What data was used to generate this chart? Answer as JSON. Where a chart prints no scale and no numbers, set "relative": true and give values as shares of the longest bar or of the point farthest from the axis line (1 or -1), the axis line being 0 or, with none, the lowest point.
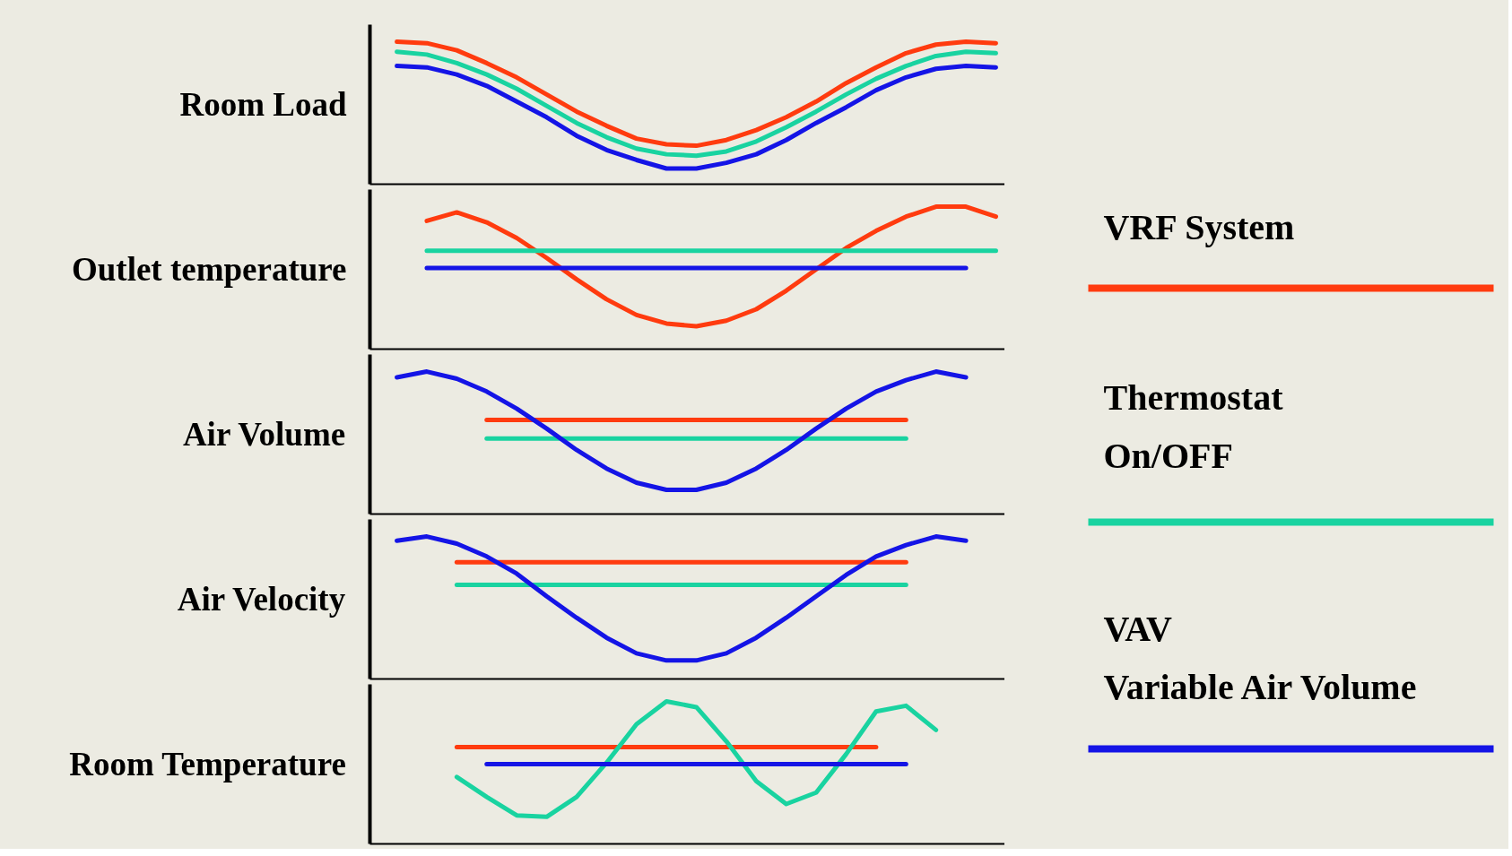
{
  "chart_data": [
    {
      "type": "line",
      "ylabel": "Room Load",
      "relative": true,
      "legend": "right",
      "grid": false,
      "categories": [
        null,
        null,
        null,
        null,
        null,
        null,
        null,
        null,
        null,
        null,
        null,
        null,
        null,
        null,
        null,
        null,
        null,
        null,
        null,
        null,
        null
      ],
      "series": [
        {
          "name": "VRF System",
          "color": "#ff3b0f",
          "values": [
            1.0,
            0.99,
            0.94,
            0.85,
            0.75,
            0.63,
            0.51,
            0.41,
            0.32,
            0.28,
            0.27,
            0.31,
            0.38,
            0.47,
            0.58,
            0.71,
            0.82,
            0.92,
            0.98,
            1.0,
            0.99
          ]
        },
        {
          "name": "Thermostat\nOn/OFF",
          "color": "#19d3a0",
          "values": [
            0.93,
            0.91,
            0.85,
            0.77,
            0.67,
            0.55,
            0.43,
            0.33,
            0.25,
            0.21,
            0.2,
            0.23,
            0.3,
            0.4,
            0.51,
            0.63,
            0.74,
            0.83,
            0.9,
            0.93,
            0.92
          ]
        },
        {
          "name": "VAV\nVariable Air Volume",
          "color": "#1414e6",
          "values": [
            0.83,
            0.82,
            0.77,
            0.69,
            0.58,
            0.47,
            0.34,
            0.24,
            0.17,
            0.11,
            0.11,
            0.15,
            0.21,
            0.31,
            0.43,
            0.54,
            0.66,
            0.75,
            0.81,
            0.83,
            0.82
          ]
        }
      ]
    },
    {
      "type": "line",
      "ylabel": "Outlet temperature",
      "relative": true,
      "grid": false,
      "categories": [
        null,
        null,
        null,
        null,
        null,
        null,
        null,
        null,
        null,
        null,
        null,
        null,
        null,
        null,
        null,
        null,
        null,
        null,
        null,
        null,
        null
      ],
      "series": [
        {
          "color": "#ff3b0f",
          "values": [
            null,
            0.9,
            0.96,
            0.89,
            0.78,
            0.64,
            0.49,
            0.35,
            0.24,
            0.18,
            0.16,
            0.2,
            0.28,
            0.41,
            0.56,
            0.71,
            0.83,
            0.93,
            1.0,
            1.0,
            0.93
          ]
        },
        {
          "color": "#19d3a0",
          "values": [
            null,
            0.69,
            0.69,
            0.69,
            0.69,
            0.69,
            0.69,
            0.69,
            0.69,
            0.69,
            0.69,
            0.69,
            0.69,
            0.69,
            0.69,
            0.69,
            0.69,
            0.69,
            0.69,
            0.69,
            0.69
          ]
        },
        {
          "color": "#1414e6",
          "values": [
            null,
            0.57,
            0.57,
            0.57,
            0.57,
            0.57,
            0.57,
            0.57,
            0.57,
            0.57,
            0.57,
            0.57,
            0.57,
            0.57,
            0.57,
            0.57,
            0.57,
            0.57,
            0.57,
            0.57,
            null
          ]
        }
      ]
    },
    {
      "type": "line",
      "ylabel": "Air Volume",
      "relative": true,
      "grid": false,
      "categories": [
        null,
        null,
        null,
        null,
        null,
        null,
        null,
        null,
        null,
        null,
        null,
        null,
        null,
        null,
        null,
        null,
        null,
        null,
        null,
        null,
        null
      ],
      "series": [
        {
          "color": "#ff3b0f",
          "values": [
            null,
            null,
            null,
            0.66,
            0.66,
            0.66,
            0.66,
            0.66,
            0.66,
            0.66,
            0.66,
            0.66,
            0.66,
            0.66,
            0.66,
            0.66,
            0.66,
            0.66,
            null,
            null,
            null
          ]
        },
        {
          "color": "#19d3a0",
          "values": [
            null,
            null,
            null,
            0.53,
            0.53,
            0.53,
            0.53,
            0.53,
            0.53,
            0.53,
            0.53,
            0.53,
            0.53,
            0.53,
            0.53,
            0.53,
            0.53,
            0.53,
            null,
            null,
            null
          ]
        },
        {
          "color": "#1414e6",
          "values": [
            0.96,
            1.0,
            0.95,
            0.86,
            0.74,
            0.6,
            0.45,
            0.32,
            0.22,
            0.17,
            0.17,
            0.22,
            0.32,
            0.45,
            0.6,
            0.74,
            0.86,
            0.94,
            1.0,
            0.96,
            null
          ]
        }
      ]
    },
    {
      "type": "line",
      "ylabel": "Air Velocity",
      "relative": true,
      "grid": false,
      "categories": [
        null,
        null,
        null,
        null,
        null,
        null,
        null,
        null,
        null,
        null,
        null,
        null,
        null,
        null,
        null,
        null,
        null,
        null,
        null,
        null,
        null
      ],
      "series": [
        {
          "color": "#ff3b0f",
          "values": [
            null,
            null,
            0.82,
            0.82,
            0.82,
            0.82,
            0.82,
            0.82,
            0.82,
            0.82,
            0.82,
            0.82,
            0.82,
            0.82,
            0.82,
            0.82,
            0.82,
            0.82,
            null,
            null,
            null
          ]
        },
        {
          "color": "#19d3a0",
          "values": [
            null,
            null,
            0.66,
            0.66,
            0.66,
            0.66,
            0.66,
            0.66,
            0.66,
            0.66,
            0.66,
            0.66,
            0.66,
            0.66,
            0.66,
            0.66,
            0.66,
            0.66,
            null,
            null,
            null
          ]
        },
        {
          "color": "#1414e6",
          "values": [
            0.97,
            1.0,
            0.95,
            0.86,
            0.74,
            0.58,
            0.43,
            0.29,
            0.18,
            0.13,
            0.13,
            0.18,
            0.29,
            0.43,
            0.58,
            0.73,
            0.86,
            0.94,
            1.0,
            0.97,
            null
          ]
        }
      ]
    },
    {
      "type": "line",
      "ylabel": "Room Temperature",
      "relative": true,
      "grid": false,
      "categories": [
        null,
        null,
        null,
        null,
        null,
        null,
        null,
        null,
        null,
        null,
        null,
        null,
        null,
        null,
        null,
        null,
        null,
        null,
        null,
        null,
        null
      ],
      "series": [
        {
          "color": "#ff3b0f",
          "values": [
            null,
            null,
            0.68,
            0.68,
            0.68,
            0.68,
            0.68,
            0.68,
            0.68,
            0.68,
            0.68,
            0.68,
            0.68,
            0.68,
            0.68,
            0.68,
            0.68,
            null,
            null,
            null,
            null
          ]
        },
        {
          "color": "#19d3a0",
          "values": [
            null,
            null,
            0.47,
            0.33,
            0.2,
            0.19,
            0.33,
            0.57,
            0.84,
            1.0,
            0.96,
            0.72,
            0.44,
            0.28,
            0.36,
            0.63,
            0.93,
            0.97,
            0.8,
            null,
            null
          ]
        },
        {
          "color": "#1414e6",
          "values": [
            null,
            null,
            null,
            0.56,
            0.56,
            0.56,
            0.56,
            0.56,
            0.56,
            0.56,
            0.56,
            0.56,
            0.56,
            0.56,
            0.56,
            0.56,
            0.56,
            0.56,
            null,
            null,
            null
          ]
        }
      ]
    }
  ]
}
